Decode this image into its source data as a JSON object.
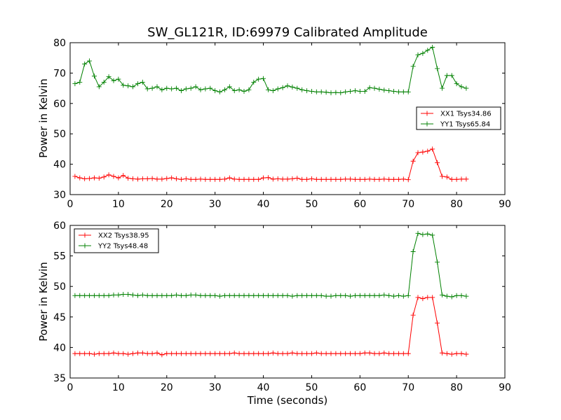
{
  "chart_data": [
    {
      "type": "line",
      "title": "SW_GL121R, ID:69979 Calibrated Amplitude",
      "xlabel": "",
      "ylabel": "Power in Kelvin",
      "xlim": [
        0,
        90
      ],
      "ylim": [
        30,
        80
      ],
      "x_ticks": [
        "0",
        "10",
        "20",
        "30",
        "40",
        "50",
        "60",
        "70",
        "80",
        "90"
      ],
      "y_ticks": [
        "30",
        "40",
        "50",
        "60",
        "70",
        "80"
      ],
      "grid": false,
      "legend": "center-right",
      "x": [
        1,
        2,
        3,
        4,
        5,
        6,
        7,
        8,
        9,
        10,
        11,
        12,
        13,
        14,
        15,
        16,
        17,
        18,
        19,
        20,
        21,
        22,
        23,
        24,
        25,
        26,
        27,
        28,
        29,
        30,
        31,
        32,
        33,
        34,
        35,
        36,
        37,
        38,
        39,
        40,
        41,
        42,
        43,
        44,
        45,
        46,
        47,
        48,
        49,
        50,
        51,
        52,
        53,
        54,
        55,
        56,
        57,
        58,
        59,
        60,
        61,
        62,
        63,
        64,
        65,
        66,
        67,
        68,
        69,
        70,
        71,
        72,
        73,
        74,
        75,
        76,
        77,
        78,
        79,
        80,
        81,
        82
      ],
      "series": [
        {
          "name": "XX1 Tsys34.86",
          "color": "#ff0000",
          "values": [
            36,
            35.5,
            35.2,
            35.3,
            35.5,
            35.4,
            35.8,
            36.5,
            36,
            35.5,
            36.3,
            35.4,
            35.2,
            35.1,
            35.2,
            35.2,
            35.3,
            35.1,
            35.1,
            35.3,
            35.5,
            35.2,
            35,
            35.2,
            35,
            35,
            35.1,
            35,
            35,
            35,
            35,
            35.1,
            35.5,
            35.1,
            35,
            35,
            35,
            35,
            35,
            35.5,
            35.6,
            35.1,
            35.2,
            35.1,
            35.1,
            35.2,
            35.4,
            35,
            35,
            35.2,
            35,
            35,
            35,
            35,
            35,
            35,
            35.1,
            35.1,
            35,
            35,
            35,
            35.1,
            35,
            35,
            35.1,
            35,
            35,
            35,
            35.1,
            34.9,
            41,
            43.8,
            44,
            44.3,
            45,
            40.5,
            36,
            35.8,
            35,
            35,
            35.1,
            35.1
          ]
        },
        {
          "name": "YY1 Tsys65.84",
          "color": "#008000",
          "values": [
            66.5,
            67,
            73,
            74,
            69,
            65.5,
            67,
            68.8,
            67.5,
            68,
            66,
            65.8,
            65.5,
            66.5,
            67,
            64.8,
            65,
            65.5,
            64.5,
            65,
            64.8,
            65,
            64.2,
            64.8,
            65,
            65.5,
            64.5,
            64.8,
            65,
            64.2,
            63.8,
            64.5,
            65.5,
            64.2,
            64.5,
            64,
            64.5,
            67,
            68,
            68.2,
            64.5,
            64.2,
            64.8,
            65.2,
            65.8,
            65.4,
            65,
            64.5,
            64.2,
            64,
            63.8,
            63.8,
            63.7,
            63.5,
            63.6,
            63.5,
            63.8,
            64,
            64.2,
            64,
            64,
            65.2,
            65,
            64.7,
            64.4,
            64.2,
            64,
            63.8,
            63.8,
            63.8,
            72.2,
            76,
            76.5,
            77.5,
            78.5,
            71.5,
            65,
            69.2,
            69.2,
            66.5,
            65.5,
            65
          ]
        }
      ]
    },
    {
      "type": "line",
      "title": "",
      "xlabel": "Time (seconds)",
      "ylabel": "Power in Kelvin",
      "xlim": [
        0,
        90
      ],
      "ylim": [
        35,
        60
      ],
      "x_ticks": [
        "0",
        "10",
        "20",
        "30",
        "40",
        "50",
        "60",
        "70",
        "80",
        "90"
      ],
      "y_ticks": [
        "35",
        "40",
        "45",
        "50",
        "55",
        "60"
      ],
      "grid": false,
      "legend": "top-left",
      "x": [
        1,
        2,
        3,
        4,
        5,
        6,
        7,
        8,
        9,
        10,
        11,
        12,
        13,
        14,
        15,
        16,
        17,
        18,
        19,
        20,
        21,
        22,
        23,
        24,
        25,
        26,
        27,
        28,
        29,
        30,
        31,
        32,
        33,
        34,
        35,
        36,
        37,
        38,
        39,
        40,
        41,
        42,
        43,
        44,
        45,
        46,
        47,
        48,
        49,
        50,
        51,
        52,
        53,
        54,
        55,
        56,
        57,
        58,
        59,
        60,
        61,
        62,
        63,
        64,
        65,
        66,
        67,
        68,
        69,
        70,
        71,
        72,
        73,
        74,
        75,
        76,
        77,
        78,
        79,
        80,
        81,
        82
      ],
      "series": [
        {
          "name": "XX2 Tsys38.95",
          "color": "#ff0000",
          "values": [
            39,
            39,
            39,
            39,
            38.9,
            39,
            39,
            39,
            39.1,
            39,
            39,
            38.9,
            39,
            39.1,
            39.1,
            39,
            39,
            39.1,
            38.8,
            39,
            39,
            39,
            39,
            39,
            39,
            39,
            39,
            39,
            39,
            39,
            39,
            39,
            39,
            39.1,
            39,
            39,
            39,
            39,
            39,
            39,
            39,
            39.1,
            39,
            39,
            39,
            39.1,
            39,
            39,
            39,
            39,
            39.1,
            39,
            39,
            39,
            39,
            39,
            39,
            39,
            39,
            39,
            39.1,
            39.1,
            39,
            39,
            39.1,
            39,
            39,
            39,
            39,
            39,
            45.3,
            48.2,
            48,
            48.2,
            48.2,
            44,
            39.1,
            39,
            38.9,
            39,
            39,
            38.9
          ]
        },
        {
          "name": "YY2 Tsys48.48",
          "color": "#008000",
          "values": [
            48.5,
            48.5,
            48.5,
            48.5,
            48.5,
            48.5,
            48.5,
            48.5,
            48.6,
            48.6,
            48.7,
            48.7,
            48.6,
            48.5,
            48.6,
            48.5,
            48.5,
            48.5,
            48.5,
            48.5,
            48.5,
            48.6,
            48.5,
            48.5,
            48.6,
            48.6,
            48.5,
            48.5,
            48.5,
            48.5,
            48.4,
            48.5,
            48.5,
            48.5,
            48.5,
            48.5,
            48.5,
            48.5,
            48.5,
            48.5,
            48.5,
            48.5,
            48.5,
            48.5,
            48.5,
            48.4,
            48.5,
            48.5,
            48.5,
            48.5,
            48.5,
            48.5,
            48.4,
            48.4,
            48.5,
            48.5,
            48.5,
            48.4,
            48.5,
            48.5,
            48.5,
            48.5,
            48.5,
            48.5,
            48.6,
            48.5,
            48.4,
            48.5,
            48.4,
            48.5,
            55.7,
            58.7,
            58.5,
            58.6,
            58.4,
            54,
            48.6,
            48.4,
            48.3,
            48.5,
            48.5,
            48.4
          ]
        }
      ]
    }
  ]
}
